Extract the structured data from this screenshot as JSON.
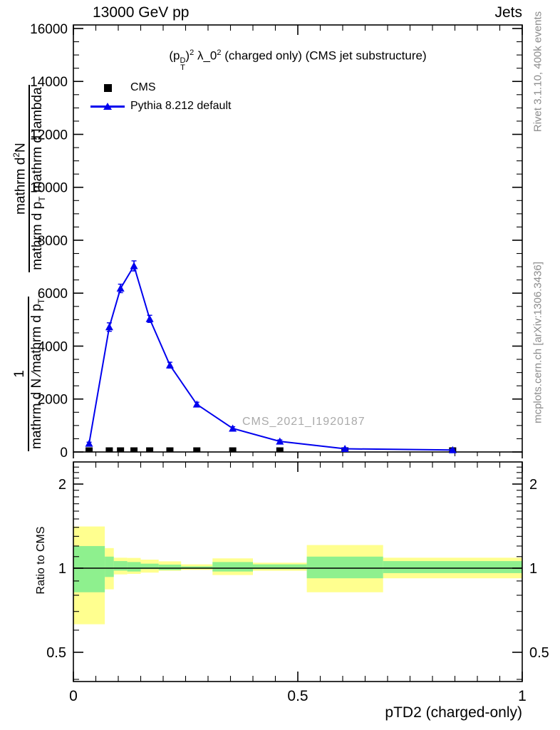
{
  "header": {
    "left": "13000 GeV pp",
    "right": "Jets"
  },
  "title": {
    "part1": "(p",
    "stack_top": "D",
    "stack_bottom": "T",
    "part2": ")",
    "sup1": "2",
    "part3": " λ_0",
    "sup2": "2",
    "part4": " (charged only) (CMS jet substructure)"
  },
  "legend": {
    "items": [
      {
        "label": "CMS",
        "marker": "black-square"
      },
      {
        "label": "Pythia 8.212 default",
        "marker": "blue-line-triangle"
      }
    ]
  },
  "ylabel": {
    "frac1": {
      "num": "1",
      "den_main": "mathrm d N ∕mathrm d p",
      "den_sub": "T"
    },
    "frac2": {
      "num_pre": "mathrm d",
      "num_sup": "2",
      "num_post": "N",
      "den_pre": "mathrm d p",
      "den_sub": "T",
      "den_post": " mathrm d lambda"
    }
  },
  "side_text": {
    "top_right": "Rivet 3.1.10,  400k events",
    "bottom_right": "mcplots.cern.ch [arXiv:1306.3436]"
  },
  "watermark": "CMS_2021_I1920187",
  "ratio_panel_label": "Ratio to CMS",
  "colors": {
    "pythia_blue": "#0000ee",
    "cms_black": "#000000",
    "band_yellow": "#ffff8f",
    "band_green": "#8ef08e",
    "gray_text": "#8c8c8c",
    "frame": "#000000"
  },
  "chart_data": {
    "type": "line",
    "title": "(p_T^D)^2 lambda_0^2 (charged only) (CMS jet substructure)",
    "xlabel": "pTD2 (charged-only)",
    "ylabel": "1 / (mathrm d N / mathrm d p_T) * mathrm d^2 N / (mathrm d p_T mathrm d lambda)",
    "xlim": [
      0,
      1
    ],
    "ylim": [
      0,
      16134
    ],
    "grid": false,
    "legend_position": "top-left-inside",
    "axes": {
      "x": {
        "major_values": [
          0,
          0.5,
          1
        ],
        "major_labels": [
          "0",
          "0.5",
          "1"
        ],
        "minor_step": 0.05
      },
      "y_main": {
        "major_values": [
          0,
          2000,
          4000,
          6000,
          8000,
          10000,
          12000,
          14000,
          16000
        ],
        "major_labels": [
          "0",
          "2000",
          "4000",
          "6000",
          "8000",
          "10000",
          "12000",
          "14000",
          "16000"
        ],
        "minor_step": 500
      },
      "y_ratio": {
        "scale": "log",
        "major_values": [
          0.5,
          1,
          2
        ],
        "major_labels": [
          "0.5",
          "1",
          "2"
        ],
        "minor_values": [
          0.4,
          0.6,
          0.7,
          0.8,
          0.9,
          1.1,
          1.2,
          1.3,
          1.4,
          1.5,
          1.6,
          1.7,
          1.8,
          1.9,
          2.1,
          2.2,
          2.3
        ],
        "range": [
          0.39,
          2.4
        ],
        "label": "Ratio to CMS"
      }
    },
    "x": [
      0.035,
      0.08,
      0.105,
      0.135,
      0.17,
      0.215,
      0.275,
      0.355,
      0.46,
      0.605,
      0.845
    ],
    "series": [
      {
        "name": "CMS",
        "marker": "square",
        "color": "#000000",
        "values": [
          0,
          0,
          0,
          0,
          0,
          0,
          0,
          0,
          0,
          0,
          0
        ],
        "note": "CMS reference points sit at ~0 on this axis scale"
      },
      {
        "name": "Pythia 8.212 default",
        "marker": "triangle",
        "color": "#0000ee",
        "line": true,
        "values": [
          320,
          4720,
          6180,
          7030,
          5030,
          3280,
          1800,
          890,
          400,
          120,
          75
        ],
        "errors": [
          50,
          160,
          160,
          190,
          135,
          110,
          80,
          65,
          55,
          40,
          40
        ]
      }
    ],
    "ratio": {
      "reference": 1,
      "bin_edges": [
        0.0,
        0.07,
        0.09,
        0.12,
        0.15,
        0.19,
        0.24,
        0.31,
        0.4,
        0.52,
        0.69,
        1.0
      ],
      "yellow_lo": [
        0.63,
        0.84,
        0.95,
        0.954,
        0.964,
        0.979,
        0.986,
        0.945,
        0.979,
        0.82,
        0.92
      ],
      "yellow_hi": [
        1.41,
        1.18,
        1.09,
        1.088,
        1.073,
        1.058,
        1.032,
        1.084,
        1.046,
        1.21,
        1.09
      ],
      "green_lo": [
        0.82,
        0.93,
        0.98,
        0.973,
        0.992,
        0.985,
        0.995,
        0.973,
        0.992,
        0.92,
        0.96
      ],
      "green_hi": [
        1.2,
        1.1,
        1.06,
        1.052,
        1.038,
        1.03,
        1.015,
        1.052,
        1.032,
        1.1,
        1.06
      ]
    }
  }
}
